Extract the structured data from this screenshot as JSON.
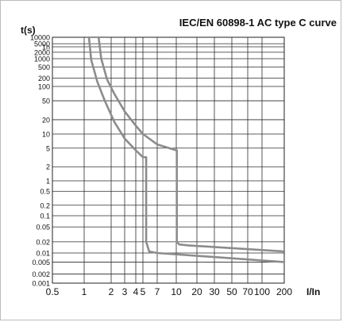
{
  "chart_data": {
    "type": "line",
    "title": "IEC/EN 60898-1 AC type C curve",
    "xlabel": "I/In",
    "ylabel": "t(s)",
    "x_scale": "log",
    "y_scale": "log",
    "xlim": [
      0.5,
      200
    ],
    "ylim": [
      0.001,
      10000
    ],
    "grid": true,
    "x_ticks": [
      0.5,
      1,
      2,
      3,
      4,
      5,
      7,
      10,
      20,
      30,
      50,
      70,
      100,
      200
    ],
    "x_tick_labels": [
      "0.5",
      "1",
      "2",
      "3",
      "4",
      "5",
      "7",
      "10",
      "20",
      "30",
      "50",
      "70",
      "100",
      "200"
    ],
    "y_ticks": [
      0.001,
      0.002,
      0.005,
      0.01,
      0.02,
      0.05,
      0.1,
      0.2,
      0.5,
      1,
      2,
      5,
      10,
      20,
      50,
      100,
      200,
      500,
      1000,
      2000,
      3600,
      5000,
      10000
    ],
    "y_tick_labels": [
      "0.001",
      "0.002",
      "0.005",
      "0.01",
      "0.02",
      "0.05",
      "0.1",
      "0.2",
      "0.5",
      "1",
      "2",
      "5",
      "10",
      "20",
      "50",
      "100",
      "200",
      "500",
      "1000",
      "2000",
      "1h",
      "5000",
      "10000"
    ],
    "series": [
      {
        "color": "#8c8c8c",
        "points": [
          [
            1.13,
            10000
          ],
          [
            1.2,
            900
          ],
          [
            1.4,
            150
          ],
          [
            1.7,
            50
          ],
          [
            2.2,
            18
          ],
          [
            3,
            8
          ],
          [
            4,
            4.5
          ],
          [
            5,
            3.2
          ],
          [
            5.4,
            3.2
          ],
          [
            5.4,
            0.02
          ],
          [
            5.8,
            0.011
          ],
          [
            7,
            0.01
          ],
          [
            200,
            0.005
          ]
        ]
      },
      {
        "color": "#8c8c8c",
        "points": [
          [
            1.45,
            10000
          ],
          [
            1.55,
            1000
          ],
          [
            1.8,
            180
          ],
          [
            2.2,
            70
          ],
          [
            3,
            30
          ],
          [
            4,
            15
          ],
          [
            5,
            10
          ],
          [
            7,
            6
          ],
          [
            10,
            4.5
          ],
          [
            10.2,
            4.5
          ],
          [
            10.2,
            0.02
          ],
          [
            11,
            0.017
          ],
          [
            15,
            0.016
          ],
          [
            200,
            0.011
          ]
        ]
      }
    ]
  }
}
